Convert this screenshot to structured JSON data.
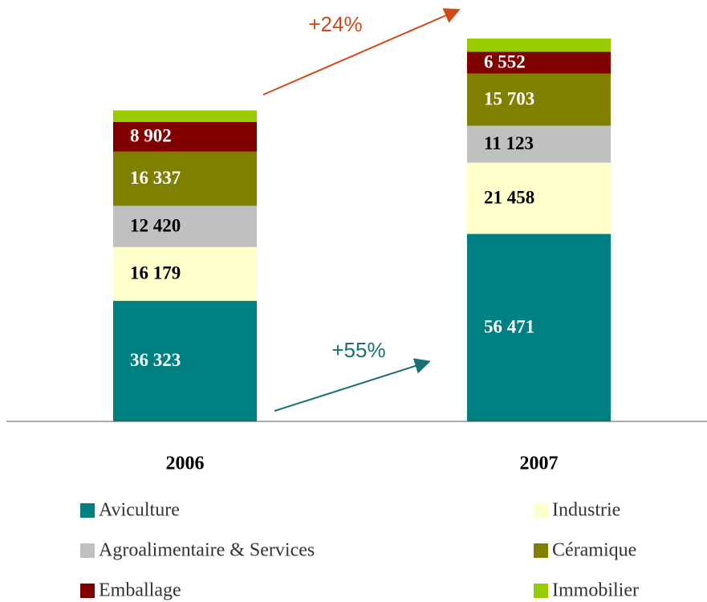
{
  "chart_data": {
    "type": "stacked-bar",
    "categories": [
      "2006",
      "2007"
    ],
    "series": [
      {
        "name": "Aviculture",
        "color": "#008080",
        "label_color": "#ffffff",
        "values": [
          36323,
          56471
        ],
        "value_labels": [
          "36 323",
          "56 471"
        ]
      },
      {
        "name": "Industrie",
        "color": "#ffffcc",
        "label_color": "#000000",
        "values": [
          16179,
          21458
        ],
        "value_labels": [
          "16 179",
          "21 458"
        ]
      },
      {
        "name": "Agroalimentaire & Services",
        "color": "#c0c0c0",
        "label_color": "#000000",
        "values": [
          12420,
          11123
        ],
        "value_labels": [
          "12 420",
          "11 123"
        ]
      },
      {
        "name": "Céramique",
        "color": "#808000",
        "label_color": "#ffffff",
        "values": [
          16337,
          15703
        ],
        "value_labels": [
          "16 337",
          "15 703"
        ]
      },
      {
        "name": "Emballage",
        "color": "#800000",
        "label_color": "#ffffff",
        "values": [
          8902,
          6552
        ],
        "value_labels": [
          "8 902",
          "6 552"
        ]
      },
      {
        "name": "Immobilier",
        "color": "#99cc00",
        "values": [
          3500,
          4000
        ]
      }
    ],
    "annotations": [
      {
        "text": "+24%",
        "color": "#d04a1a"
      },
      {
        "text": "+55%",
        "color": "#1a7070"
      }
    ]
  }
}
